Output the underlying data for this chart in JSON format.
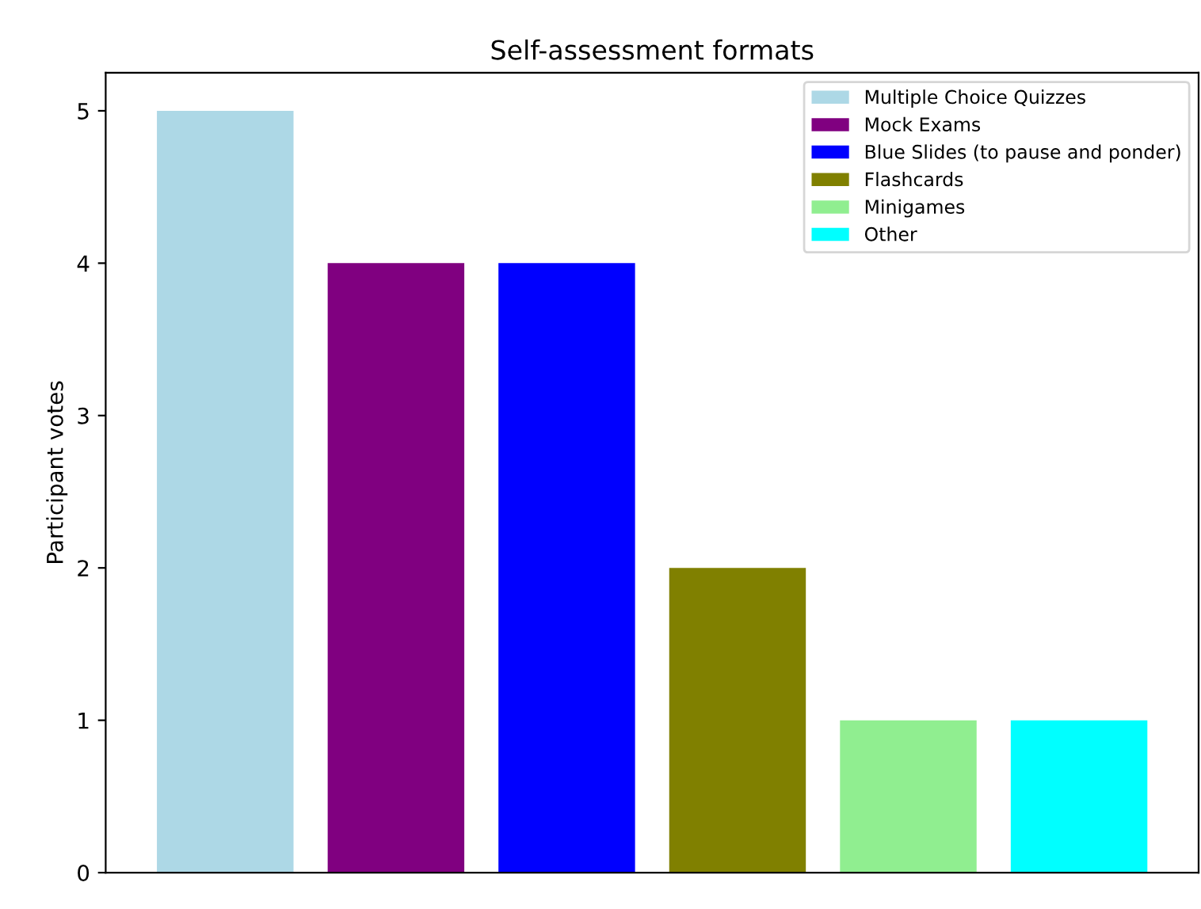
{
  "chart_data": {
    "type": "bar",
    "title": "Self-assessment formats",
    "ylabel": "Participant votes",
    "categories": [
      null,
      null,
      null,
      null,
      null,
      null
    ],
    "series": [
      {
        "name": "Multiple Choice Quizzes",
        "color": "#add8e6",
        "values": [
          5,
          null,
          null,
          null,
          null,
          null
        ]
      },
      {
        "name": "Mock Exams",
        "color": "#800080",
        "values": [
          null,
          4,
          null,
          null,
          null,
          null
        ]
      },
      {
        "name": "Blue Slides (to pause and ponder)",
        "color": "#0000ff",
        "values": [
          null,
          null,
          4,
          null,
          null,
          null
        ]
      },
      {
        "name": "Flashcards",
        "color": "#808000",
        "values": [
          null,
          null,
          null,
          2,
          null,
          null
        ]
      },
      {
        "name": "Minigames",
        "color": "#90ee90",
        "values": [
          null,
          null,
          null,
          null,
          1,
          null
        ]
      },
      {
        "name": "Other",
        "color": "#00ffff",
        "values": [
          null,
          null,
          null,
          null,
          null,
          1
        ]
      }
    ],
    "ylim": [
      0,
      5.25
    ],
    "yticks": [
      0,
      1,
      2,
      3,
      4,
      5
    ],
    "grid": false,
    "legend": "top right"
  }
}
